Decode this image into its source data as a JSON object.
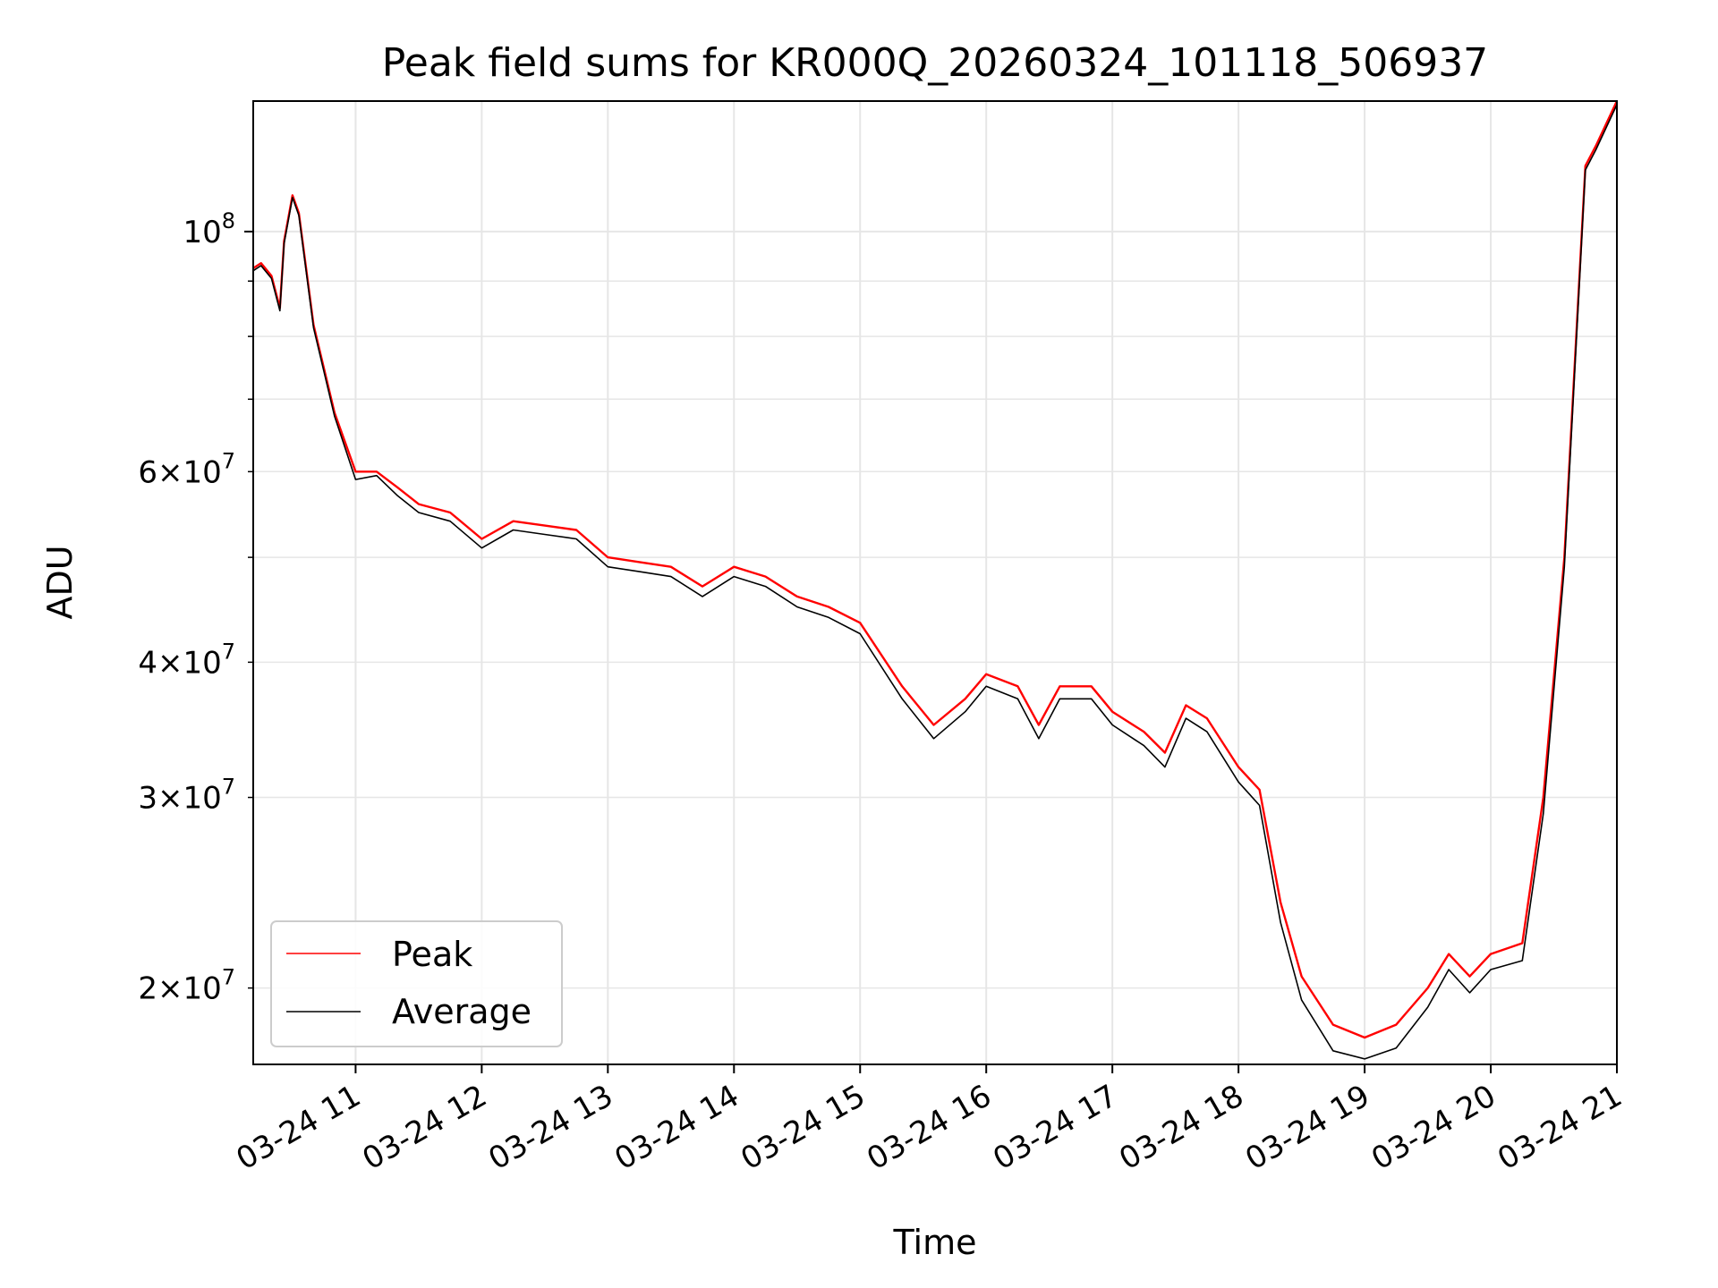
{
  "chart_data": {
    "type": "line",
    "title": "Peak field sums for KR000Q_20260324_101118_506937",
    "xlabel": "Time",
    "ylabel": "ADU",
    "x_scale": "time",
    "y_scale": "log",
    "xlim": [
      "2026-03-24 10:11:18",
      "2026-03-24 21:00"
    ],
    "ylim": [
      17000000,
      132000000
    ],
    "x_ticks": [
      {
        "t": "2026-03-24 11:00",
        "label": "03-24 11"
      },
      {
        "t": "2026-03-24 12:00",
        "label": "03-24 12"
      },
      {
        "t": "2026-03-24 13:00",
        "label": "03-24 13"
      },
      {
        "t": "2026-03-24 14:00",
        "label": "03-24 14"
      },
      {
        "t": "2026-03-24 15:00",
        "label": "03-24 15"
      },
      {
        "t": "2026-03-24 16:00",
        "label": "03-24 16"
      },
      {
        "t": "2026-03-24 17:00",
        "label": "03-24 17"
      },
      {
        "t": "2026-03-24 18:00",
        "label": "03-24 18"
      },
      {
        "t": "2026-03-24 19:00",
        "label": "03-24 19"
      },
      {
        "t": "2026-03-24 20:00",
        "label": "03-24 20"
      },
      {
        "t": "2026-03-24 21:00",
        "label": "03-24 21"
      }
    ],
    "y_major_ticks": [
      {
        "value": 100000000,
        "base": "10",
        "exp": "8"
      }
    ],
    "y_minor_ticks": [
      {
        "value": 20000000,
        "mant": "2",
        "exp": "7"
      },
      {
        "value": 30000000,
        "mant": "3",
        "exp": "7"
      },
      {
        "value": 40000000,
        "mant": "4",
        "exp": "7"
      },
      {
        "value": 50000000
      },
      {
        "value": 60000000,
        "mant": "6",
        "exp": "7"
      },
      {
        "value": 70000000
      },
      {
        "value": 80000000
      },
      {
        "value": 90000000
      }
    ],
    "grid": true,
    "legend_position": "lower-left",
    "series": [
      {
        "name": "Peak",
        "color": "#ff0000",
        "points": [
          [
            "2026-03-24 10:11:18",
            92500000
          ],
          [
            "2026-03-24 10:15",
            93500000
          ],
          [
            "2026-03-24 10:20",
            91000000
          ],
          [
            "2026-03-24 10:24",
            85000000
          ],
          [
            "2026-03-24 10:26",
            98000000
          ],
          [
            "2026-03-24 10:30",
            108000000
          ],
          [
            "2026-03-24 10:33",
            104000000
          ],
          [
            "2026-03-24 10:40",
            82000000
          ],
          [
            "2026-03-24 10:50",
            68000000
          ],
          [
            "2026-03-24 11:00",
            60000000
          ],
          [
            "2026-03-24 11:10",
            60000000
          ],
          [
            "2026-03-24 11:20",
            58000000
          ],
          [
            "2026-03-24 11:30",
            56000000
          ],
          [
            "2026-03-24 11:45",
            55000000
          ],
          [
            "2026-03-24 12:00",
            52000000
          ],
          [
            "2026-03-24 12:15",
            54000000
          ],
          [
            "2026-03-24 12:30",
            53500000
          ],
          [
            "2026-03-24 12:45",
            53000000
          ],
          [
            "2026-03-24 13:00",
            50000000
          ],
          [
            "2026-03-24 13:15",
            49500000
          ],
          [
            "2026-03-24 13:30",
            49000000
          ],
          [
            "2026-03-24 13:45",
            47000000
          ],
          [
            "2026-03-24 14:00",
            49000000
          ],
          [
            "2026-03-24 14:15",
            48000000
          ],
          [
            "2026-03-24 14:30",
            46000000
          ],
          [
            "2026-03-24 14:45",
            45000000
          ],
          [
            "2026-03-24 15:00",
            43500000
          ],
          [
            "2026-03-24 15:20",
            38000000
          ],
          [
            "2026-03-24 15:35",
            35000000
          ],
          [
            "2026-03-24 15:50",
            37000000
          ],
          [
            "2026-03-24 16:00",
            39000000
          ],
          [
            "2026-03-24 16:15",
            38000000
          ],
          [
            "2026-03-24 16:25",
            35000000
          ],
          [
            "2026-03-24 16:35",
            38000000
          ],
          [
            "2026-03-24 16:50",
            38000000
          ],
          [
            "2026-03-24 17:00",
            36000000
          ],
          [
            "2026-03-24 17:15",
            34500000
          ],
          [
            "2026-03-24 17:25",
            33000000
          ],
          [
            "2026-03-24 17:35",
            36500000
          ],
          [
            "2026-03-24 17:45",
            35500000
          ],
          [
            "2026-03-24 18:00",
            32000000
          ],
          [
            "2026-03-24 18:10",
            30500000
          ],
          [
            "2026-03-24 18:20",
            24000000
          ],
          [
            "2026-03-24 18:30",
            20500000
          ],
          [
            "2026-03-24 18:45",
            18500000
          ],
          [
            "2026-03-24 19:00",
            18000000
          ],
          [
            "2026-03-24 19:15",
            18500000
          ],
          [
            "2026-03-24 19:30",
            20000000
          ],
          [
            "2026-03-24 19:40",
            21500000
          ],
          [
            "2026-03-24 19:50",
            20500000
          ],
          [
            "2026-03-24 20:00",
            21500000
          ],
          [
            "2026-03-24 20:15",
            22000000
          ],
          [
            "2026-03-24 20:25",
            30000000
          ],
          [
            "2026-03-24 20:35",
            50000000
          ],
          [
            "2026-03-24 20:45",
            115000000
          ],
          [
            "2026-03-24 20:50",
            120000000
          ],
          [
            "2026-03-24 21:00",
            132000000
          ]
        ]
      },
      {
        "name": "Average",
        "color": "#000000",
        "points": [
          [
            "2026-03-24 10:11:18",
            92000000
          ],
          [
            "2026-03-24 10:15",
            93000000
          ],
          [
            "2026-03-24 10:20",
            90500000
          ],
          [
            "2026-03-24 10:24",
            84500000
          ],
          [
            "2026-03-24 10:26",
            97500000
          ],
          [
            "2026-03-24 10:30",
            107500000
          ],
          [
            "2026-03-24 10:33",
            103500000
          ],
          [
            "2026-03-24 10:40",
            81500000
          ],
          [
            "2026-03-24 10:50",
            67500000
          ],
          [
            "2026-03-24 11:00",
            59000000
          ],
          [
            "2026-03-24 11:10",
            59500000
          ],
          [
            "2026-03-24 11:20",
            57000000
          ],
          [
            "2026-03-24 11:30",
            55000000
          ],
          [
            "2026-03-24 11:45",
            54000000
          ],
          [
            "2026-03-24 12:00",
            51000000
          ],
          [
            "2026-03-24 12:15",
            53000000
          ],
          [
            "2026-03-24 12:30",
            52500000
          ],
          [
            "2026-03-24 12:45",
            52000000
          ],
          [
            "2026-03-24 13:00",
            49000000
          ],
          [
            "2026-03-24 13:15",
            48500000
          ],
          [
            "2026-03-24 13:30",
            48000000
          ],
          [
            "2026-03-24 13:45",
            46000000
          ],
          [
            "2026-03-24 14:00",
            48000000
          ],
          [
            "2026-03-24 14:15",
            47000000
          ],
          [
            "2026-03-24 14:30",
            45000000
          ],
          [
            "2026-03-24 14:45",
            44000000
          ],
          [
            "2026-03-24 15:00",
            42500000
          ],
          [
            "2026-03-24 15:20",
            37000000
          ],
          [
            "2026-03-24 15:35",
            34000000
          ],
          [
            "2026-03-24 15:50",
            36000000
          ],
          [
            "2026-03-24 16:00",
            38000000
          ],
          [
            "2026-03-24 16:15",
            37000000
          ],
          [
            "2026-03-24 16:25",
            34000000
          ],
          [
            "2026-03-24 16:35",
            37000000
          ],
          [
            "2026-03-24 16:50",
            37000000
          ],
          [
            "2026-03-24 17:00",
            35000000
          ],
          [
            "2026-03-24 17:15",
            33500000
          ],
          [
            "2026-03-24 17:25",
            32000000
          ],
          [
            "2026-03-24 17:35",
            35500000
          ],
          [
            "2026-03-24 17:45",
            34500000
          ],
          [
            "2026-03-24 18:00",
            31000000
          ],
          [
            "2026-03-24 18:10",
            29500000
          ],
          [
            "2026-03-24 18:20",
            23000000
          ],
          [
            "2026-03-24 18:30",
            19500000
          ],
          [
            "2026-03-24 18:45",
            17500000
          ],
          [
            "2026-03-24 19:00",
            17200000
          ],
          [
            "2026-03-24 19:15",
            17600000
          ],
          [
            "2026-03-24 19:30",
            19200000
          ],
          [
            "2026-03-24 19:40",
            20800000
          ],
          [
            "2026-03-24 19:50",
            19800000
          ],
          [
            "2026-03-24 20:00",
            20800000
          ],
          [
            "2026-03-24 20:15",
            21200000
          ],
          [
            "2026-03-24 20:25",
            29000000
          ],
          [
            "2026-03-24 20:35",
            49000000
          ],
          [
            "2026-03-24 20:45",
            114000000
          ],
          [
            "2026-03-24 20:50",
            119000000
          ],
          [
            "2026-03-24 21:00",
            131000000
          ]
        ]
      }
    ]
  }
}
